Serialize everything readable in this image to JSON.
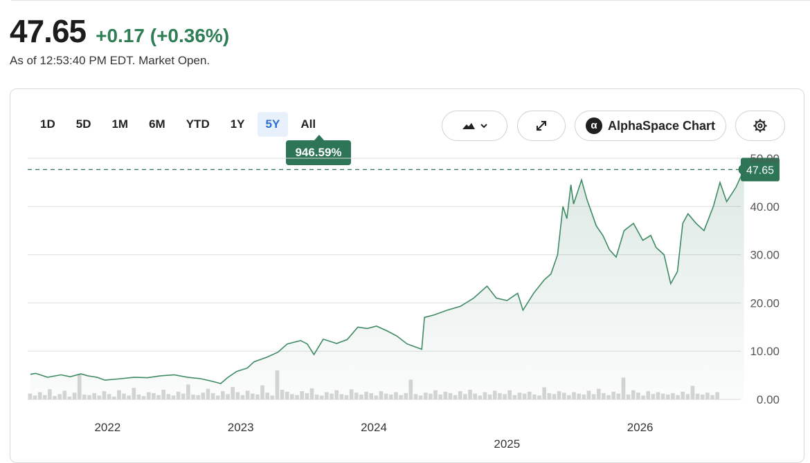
{
  "quote": {
    "price": "47.65",
    "change": "+0.17 (+0.36%)",
    "as_of": "As of 12:53:40 PM EDT. Market Open."
  },
  "toolbar": {
    "ranges": [
      "1D",
      "5D",
      "1M",
      "6M",
      "YTD",
      "1Y",
      "5Y",
      "All"
    ],
    "active_range": "5Y",
    "range_performance": "946.59%",
    "chart_type_icon": "mountain-chart-icon",
    "alpha_label": "AlphaSpace Chart",
    "alpha_icon": "alpha-symbol-icon",
    "expand_icon": "expand-arrows-icon",
    "settings_icon": "gear-icon"
  },
  "colors": {
    "accent_green": "#2e7457",
    "line_green": "#3d8a62",
    "active_range_bg": "#e8f1fb",
    "active_range_text": "#2b6fd1"
  },
  "chart_data": {
    "type": "area",
    "y_ticks": [
      "0.00",
      "10.00",
      "20.00",
      "30.00",
      "40.00",
      "50.00"
    ],
    "ylim": [
      0,
      50
    ],
    "x_tick_labels": [
      {
        "label": "2022",
        "x": 2022.0
      },
      {
        "label": "2023",
        "x": 2023.0
      },
      {
        "label": "2024",
        "x": 2024.0
      },
      {
        "label": "2025",
        "x": 2025.0
      },
      {
        "label": "2026",
        "x": 2026.0
      }
    ],
    "xlim": [
      2021.4,
      2026.6
    ],
    "current_price_label": "47.65",
    "current_price": 47.65,
    "grid": true,
    "series": [
      {
        "points": [
          [
            2021.42,
            5.2
          ],
          [
            2021.46,
            5.4
          ],
          [
            2021.55,
            4.6
          ],
          [
            2021.65,
            5.1
          ],
          [
            2021.72,
            4.7
          ],
          [
            2021.8,
            5.3
          ],
          [
            2021.85,
            4.9
          ],
          [
            2021.92,
            4.6
          ],
          [
            2021.98,
            4.0
          ],
          [
            2022.1,
            4.3
          ],
          [
            2022.2,
            4.6
          ],
          [
            2022.3,
            4.5
          ],
          [
            2022.4,
            4.9
          ],
          [
            2022.5,
            5.1
          ],
          [
            2022.6,
            4.6
          ],
          [
            2022.7,
            4.3
          ],
          [
            2022.78,
            3.8
          ],
          [
            2022.85,
            3.3
          ],
          [
            2022.9,
            4.5
          ],
          [
            2022.97,
            5.8
          ],
          [
            2023.05,
            6.5
          ],
          [
            2023.1,
            7.8
          ],
          [
            2023.2,
            8.8
          ],
          [
            2023.28,
            9.8
          ],
          [
            2023.35,
            11.5
          ],
          [
            2023.45,
            12.2
          ],
          [
            2023.5,
            11.5
          ],
          [
            2023.55,
            9.3
          ],
          [
            2023.62,
            12.5
          ],
          [
            2023.72,
            11.6
          ],
          [
            2023.8,
            12.4
          ],
          [
            2023.88,
            15.0
          ],
          [
            2023.95,
            14.7
          ],
          [
            2024.02,
            15.2
          ],
          [
            2024.1,
            14.2
          ],
          [
            2024.17,
            13.2
          ],
          [
            2024.25,
            11.5
          ],
          [
            2024.32,
            10.8
          ],
          [
            2024.36,
            10.4
          ],
          [
            2024.38,
            17.0
          ],
          [
            2024.45,
            17.5
          ],
          [
            2024.55,
            18.5
          ],
          [
            2024.65,
            19.3
          ],
          [
            2024.75,
            21.0
          ],
          [
            2024.85,
            23.5
          ],
          [
            2024.92,
            21.0
          ],
          [
            2025.0,
            20.5
          ],
          [
            2025.08,
            22.0
          ],
          [
            2025.12,
            18.5
          ],
          [
            2025.2,
            22.0
          ],
          [
            2025.28,
            24.8
          ],
          [
            2025.33,
            26.0
          ],
          [
            2025.38,
            30.0
          ],
          [
            2025.42,
            40.0
          ],
          [
            2025.45,
            37.5
          ],
          [
            2025.48,
            44.5
          ],
          [
            2025.5,
            40.5
          ],
          [
            2025.56,
            45.5
          ],
          [
            2025.6,
            41.5
          ],
          [
            2025.67,
            36.0
          ],
          [
            2025.72,
            34.0
          ],
          [
            2025.77,
            31.0
          ],
          [
            2025.82,
            29.5
          ],
          [
            2025.88,
            35.0
          ],
          [
            2025.95,
            36.5
          ],
          [
            2026.02,
            33.0
          ],
          [
            2026.08,
            34.0
          ],
          [
            2026.12,
            31.5
          ],
          [
            2026.18,
            30.0
          ],
          [
            2026.23,
            24.0
          ],
          [
            2026.28,
            26.5
          ],
          [
            2026.32,
            36.5
          ],
          [
            2026.36,
            38.5
          ],
          [
            2026.42,
            36.5
          ],
          [
            2026.48,
            35.0
          ],
          [
            2026.55,
            40.0
          ],
          [
            2026.6,
            45.0
          ],
          [
            2026.65,
            41.0
          ],
          [
            2026.72,
            44.0
          ],
          [
            2026.78,
            47.65
          ]
        ]
      }
    ],
    "volume_bars": [
      1.2,
      0.8,
      1.5,
      0.9,
      2.1,
      0.7,
      1.1,
      1.8,
      0.6,
      1.4,
      5.2,
      1.0,
      0.9,
      1.3,
      0.8,
      1.7,
      1.1,
      0.6,
      1.9,
      1.2,
      0.8,
      2.4,
      1.0,
      0.7,
      1.5,
      1.3,
      0.9,
      2.0,
      1.1,
      0.8,
      1.6,
      1.2,
      3.1,
      1.0,
      0.9,
      1.4,
      2.2,
      1.3,
      0.8,
      1.7,
      1.1,
      2.6,
      1.5,
      0.9,
      1.8,
      1.2,
      1.0,
      2.9,
      1.4,
      0.8,
      6.0,
      2.0,
      1.6,
      1.1,
      0.9,
      1.7,
      1.3,
      2.3,
      1.0,
      0.8,
      1.5,
      1.2,
      1.9,
      1.1,
      0.9,
      2.1,
      1.4,
      1.0,
      1.6,
      1.3,
      0.8,
      1.7,
      1.2,
      1.0,
      1.5,
      0.9,
      1.3,
      4.1,
      1.1,
      0.8,
      1.4,
      1.2,
      1.9,
      1.0,
      1.6,
      1.3,
      0.9,
      1.7,
      1.1,
      2.0,
      1.2,
      0.8,
      1.5,
      1.0,
      1.8,
      1.3,
      1.1,
      1.9,
      0.9,
      1.4,
      1.2,
      1.6,
      1.0,
      0.8,
      2.5,
      1.3,
      1.1,
      1.7,
      1.4,
      0.9,
      1.5,
      1.2,
      1.0,
      1.8,
      1.1,
      2.2,
      1.3,
      0.9,
      1.6,
      1.2,
      4.5,
      1.0,
      1.9,
      1.4,
      0.8,
      1.7,
      1.1,
      1.5,
      1.2,
      1.0,
      1.3,
      0.9,
      1.6,
      1.1,
      2.8,
      1.2,
      1.0,
      1.4,
      0.9,
      1.5
    ]
  }
}
